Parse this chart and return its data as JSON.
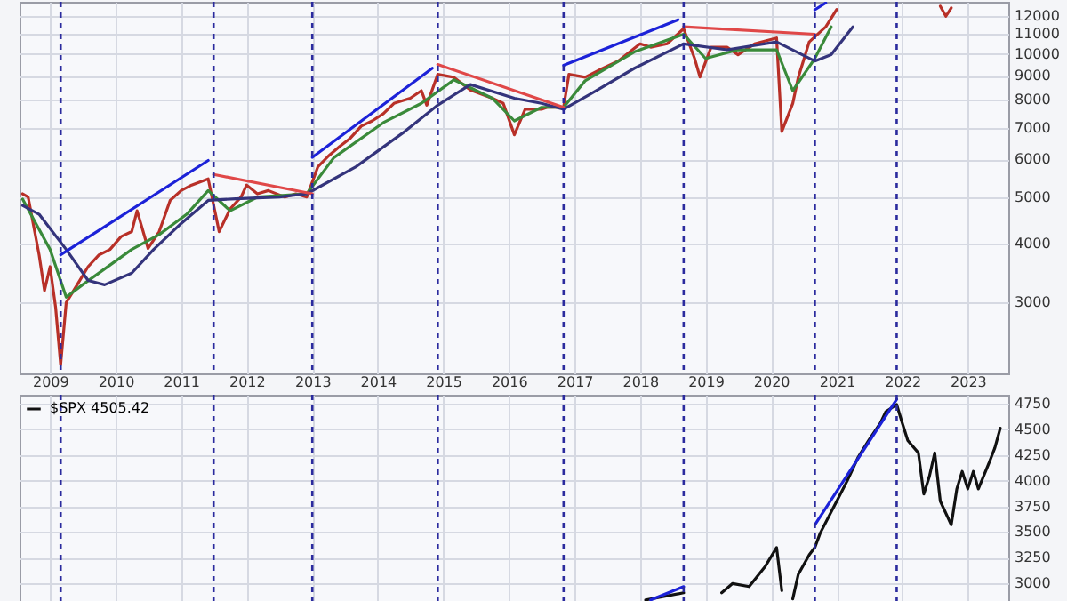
{
  "chart_data": [
    {
      "type": "line",
      "log": "y",
      "grid": true,
      "xlim": [
        "2008-07-15",
        "2023-08-15"
      ],
      "ylim": [
        2130,
        12870
      ],
      "xticks": [
        "2009",
        "2010",
        "2011",
        "2012",
        "2013",
        "2014",
        "2015",
        "2016",
        "2017",
        "2018",
        "2019",
        "2020",
        "2021",
        "2022",
        "2023"
      ],
      "yticks": [
        3000,
        4000,
        5000,
        6000,
        7000,
        8000,
        9000,
        10000,
        11000,
        12000
      ],
      "series": [
        {
          "color": "#b83028",
          "x": [
            "2008-08",
            "2008-09",
            "2008-11",
            "2008-12",
            "2009-01",
            "2009-02",
            "2009-03",
            "2009-04",
            "2009-06",
            "2009-08",
            "2009-10",
            "2009-12",
            "2010-02",
            "2010-04",
            "2010-05",
            "2010-07",
            "2010-09",
            "2010-11",
            "2011-01",
            "2011-03",
            "2011-06",
            "2011-08",
            "2011-10",
            "2011-12",
            "2012-01",
            "2012-03",
            "2012-05",
            "2012-08",
            "2012-10",
            "2012-12",
            "2013-02",
            "2013-04",
            "2013-06",
            "2013-08",
            "2013-10",
            "2013-12",
            "2014-02",
            "2014-04",
            "2014-07",
            "2014-09",
            "2014-10",
            "2014-12",
            "2015-03",
            "2015-06",
            "2015-10",
            "2015-12",
            "2016-02",
            "2016-04",
            "2016-07",
            "2016-08",
            "2016-11",
            "2016-12",
            "2017-03",
            "2017-06",
            "2017-09",
            "2018-01",
            "2018-03",
            "2018-06",
            "2018-09",
            "2018-11",
            "2018-12",
            "2019-02",
            "2019-05",
            "2019-07",
            "2019-10",
            "2020-02",
            "2020-03",
            "2020-05",
            "2020-06",
            "2020-08",
            "2020-11",
            "2021-01",
            "2021-06",
            "2022-08",
            "2022-09",
            "2022-10"
          ],
          "values": [
            5080,
            5000,
            3780,
            3180,
            3570,
            2930,
            2220,
            3000,
            3270,
            3570,
            3780,
            3880,
            4130,
            4230,
            4680,
            3900,
            4230,
            4920,
            5160,
            5300,
            5460,
            4230,
            4720,
            5000,
            5300,
            5080,
            5160,
            5000,
            5080,
            5000,
            5790,
            6100,
            6380,
            6650,
            7050,
            7230,
            7490,
            7870,
            8070,
            8370,
            7800,
            9060,
            8930,
            8400,
            8070,
            7870,
            6760,
            7650,
            7650,
            7720,
            7720,
            9060,
            8930,
            9300,
            9660,
            10500,
            10330,
            10500,
            11300,
            9780,
            8940,
            10330,
            10330,
            9960,
            10500,
            10800,
            6870,
            7870,
            8930,
            10600,
            11400,
            12400,
            null,
            12600,
            12000,
            12500
          ]
        },
        {
          "color": "#3a8a3a",
          "x": [
            "2008-08",
            "2009-01",
            "2009-04",
            "2009-07",
            "2010-04",
            "2010-09",
            "2011-02",
            "2011-06",
            "2011-10",
            "2012-03",
            "2012-12",
            "2013-05",
            "2014-02",
            "2014-09",
            "2015-03",
            "2015-10",
            "2016-02",
            "2016-07",
            "2016-11",
            "2017-03",
            "2017-12",
            "2018-09",
            "2019-01",
            "2019-07",
            "2020-02",
            "2020-05",
            "2020-09",
            "2020-12"
          ],
          "values": [
            4950,
            3880,
            3080,
            3270,
            3880,
            4170,
            4600,
            5160,
            4680,
            5000,
            5080,
            6050,
            7170,
            7870,
            8820,
            8070,
            7230,
            7720,
            7720,
            8780,
            10100,
            11000,
            9780,
            10200,
            10200,
            8370,
            9780,
            11400
          ]
        },
        {
          "color": "#34347c",
          "x": [
            "2008-08",
            "2008-11",
            "2009-04",
            "2009-08",
            "2009-11",
            "2010-04",
            "2010-08",
            "2011-01",
            "2011-06",
            "2011-11",
            "2012-07",
            "2012-12",
            "2013-09",
            "2014-06",
            "2014-12",
            "2015-06",
            "2016-02",
            "2016-07",
            "2016-11",
            "2017-04",
            "2017-12",
            "2018-09",
            "2019-05",
            "2020-02",
            "2020-09",
            "2020-12",
            "2021-04"
          ],
          "values": [
            4800,
            4600,
            3880,
            3340,
            3270,
            3460,
            3880,
            4400,
            4920,
            4960,
            5000,
            5080,
            5790,
            6870,
            7800,
            8620,
            8070,
            7870,
            7650,
            8240,
            9330,
            10500,
            10200,
            10600,
            9660,
            9960,
            11400
          ]
        },
        {
          "color": "#1c22d8",
          "x": [
            "2009-03",
            "2011-06"
          ],
          "values": [
            3780,
            5970
          ]
        },
        {
          "color": "#1c22d8",
          "x": [
            "2013-01",
            "2014-11"
          ],
          "values": [
            6060,
            9330
          ]
        },
        {
          "color": "#1c22d8",
          "x": [
            "2016-11",
            "2018-08"
          ],
          "values": [
            9460,
            11800
          ]
        },
        {
          "color": "#1c22d8",
          "x": [
            "2020-09",
            "2020-11"
          ],
          "values": [
            12380,
            12800
          ]
        },
        {
          "color": "#e04848",
          "x": [
            "2011-07",
            "2013-01"
          ],
          "values": [
            5580,
            5080
          ]
        },
        {
          "color": "#e04848",
          "x": [
            "2014-12",
            "2016-11"
          ],
          "values": [
            9500,
            7720
          ]
        },
        {
          "color": "#e04848",
          "x": [
            "2018-09",
            "2020-09"
          ],
          "values": [
            11400,
            11000
          ]
        }
      ],
      "ref_lines": [
        {
          "axis": "x",
          "value": "2009-03",
          "color": "#2b2b9e",
          "line_style": "dashed"
        },
        {
          "axis": "x",
          "value": "2011-07",
          "color": "#2b2b9e",
          "line_style": "dashed"
        },
        {
          "axis": "x",
          "value": "2013-01",
          "color": "#2b2b9e",
          "line_style": "dashed"
        },
        {
          "axis": "x",
          "value": "2014-12",
          "color": "#2b2b9e",
          "line_style": "dashed"
        },
        {
          "axis": "x",
          "value": "2016-11",
          "color": "#2b2b9e",
          "line_style": "dashed"
        },
        {
          "axis": "x",
          "value": "2018-09",
          "color": "#2b2b9e",
          "line_style": "dashed"
        },
        {
          "axis": "x",
          "value": "2020-09",
          "color": "#2b2b9e",
          "line_style": "dashed"
        },
        {
          "axis": "x",
          "value": "2021-12",
          "color": "#2b2b9e",
          "line_style": "dashed"
        }
      ]
    },
    {
      "type": "line",
      "grid": true,
      "tick_labels": "y",
      "legend": "top left",
      "xlim": [
        "2008-07-15",
        "2023-08-15"
      ],
      "ylim": [
        2830,
        4835
      ],
      "xticks": [
        "2009",
        "2010",
        "2011",
        "2012",
        "2013",
        "2014",
        "2015",
        "2016",
        "2017",
        "2018",
        "2019",
        "2020",
        "2021",
        "2022",
        "2023"
      ],
      "yticks": [
        3000,
        3250,
        3500,
        3750,
        4000,
        4250,
        4500,
        4750
      ],
      "series": [
        {
          "name": "$SPX 4505.42",
          "color": "#111111",
          "x": [
            "2018-02",
            "2018-09",
            "2018-12",
            "2019-04",
            "2019-06",
            "2019-09",
            "2019-12",
            "2020-02",
            "2020-03",
            "2020-04",
            "2020-05",
            "2020-06",
            "2020-08",
            "2020-09",
            "2020-10",
            "2021-01",
            "2021-03",
            "2021-05",
            "2021-07",
            "2021-09",
            "2021-10",
            "2021-12",
            "2022-01",
            "2022-02",
            "2022-04",
            "2022-05",
            "2022-06",
            "2022-07",
            "2022-08",
            "2022-10",
            "2022-11",
            "2022-12",
            "2023-01",
            "2023-02",
            "2023-03",
            "2023-05",
            "2023-06",
            "2023-07"
          ],
          "values": [
            2840,
            2910,
            null,
            2910,
            3000,
            2970,
            3170,
            3350,
            2930,
            null,
            2850,
            3090,
            3280,
            3350,
            3490,
            3800,
            4000,
            4230,
            4400,
            4560,
            4670,
            4740,
            4560,
            4390,
            4270,
            3870,
            4040,
            4270,
            3800,
            3570,
            3920,
            4090,
            3920,
            4090,
            3920,
            4180,
            4320,
            4510
          ]
        },
        {
          "color": "#1c22d8",
          "x": [
            "2018-03",
            "2018-09"
          ],
          "values": [
            2840,
            2970
          ]
        },
        {
          "color": "#1c22d8",
          "x": [
            "2020-09",
            "2021-12"
          ],
          "values": [
            3570,
            4790
          ]
        }
      ],
      "ref_lines": [
        {
          "axis": "x",
          "value": "2009-03",
          "color": "#2b2b9e",
          "line_style": "dashed"
        },
        {
          "axis": "x",
          "value": "2011-07",
          "color": "#2b2b9e",
          "line_style": "dashed"
        },
        {
          "axis": "x",
          "value": "2013-01",
          "color": "#2b2b9e",
          "line_style": "dashed"
        },
        {
          "axis": "x",
          "value": "2014-12",
          "color": "#2b2b9e",
          "line_style": "dashed"
        },
        {
          "axis": "x",
          "value": "2016-11",
          "color": "#2b2b9e",
          "line_style": "dashed"
        },
        {
          "axis": "x",
          "value": "2018-09",
          "color": "#2b2b9e",
          "line_style": "dashed"
        },
        {
          "axis": "x",
          "value": "2020-09",
          "color": "#2b2b9e",
          "line_style": "dashed"
        },
        {
          "axis": "x",
          "value": "2021-12",
          "color": "#2b2b9e",
          "line_style": "dashed"
        }
      ]
    }
  ]
}
